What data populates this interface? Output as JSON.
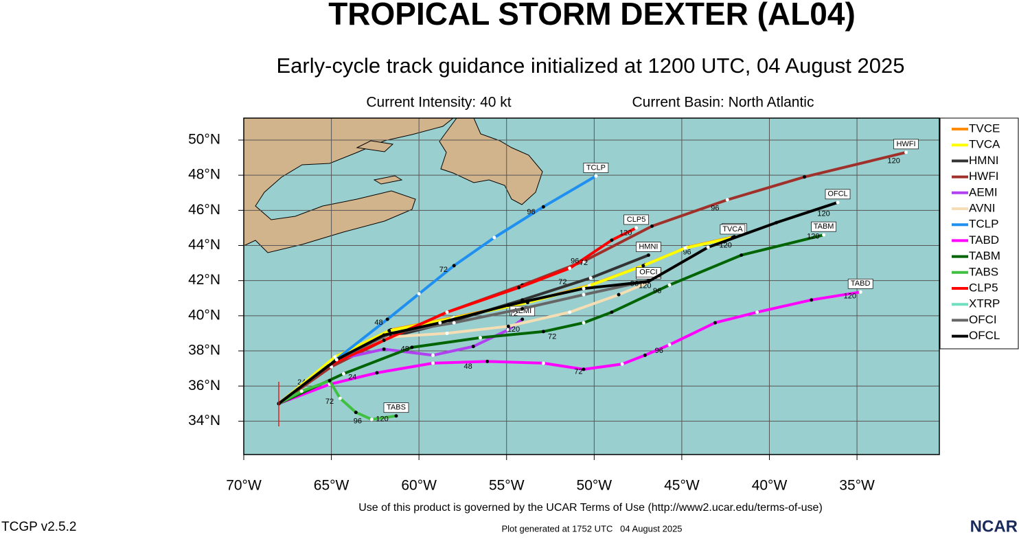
{
  "chart_data": {
    "type": "track",
    "title": "TROPICAL STORM DEXTER (AL04)",
    "subtitle": "Early-cycle track guidance initialized at 1200 UTC, 04 August 2025",
    "intensity_note": "Current Intensity: 40 kt",
    "basin_note": "Current Basin: North Atlantic",
    "xlim": [
      -70,
      -30.3
    ],
    "ylim": [
      32.1,
      51.25
    ],
    "xticks": [
      {
        "value": -70,
        "label": "70°W"
      },
      {
        "value": -65,
        "label": "65°W"
      },
      {
        "value": -60,
        "label": "60°W"
      },
      {
        "value": -55,
        "label": "55°W"
      },
      {
        "value": -50,
        "label": "50°W"
      },
      {
        "value": -45,
        "label": "45°W"
      },
      {
        "value": -40,
        "label": "40°W"
      },
      {
        "value": -35,
        "label": "35°W"
      }
    ],
    "yticks": [
      {
        "value": 34,
        "label": "34°N"
      },
      {
        "value": 36,
        "label": "36°N"
      },
      {
        "value": 38,
        "label": "38°N"
      },
      {
        "value": 40,
        "label": "40°N"
      },
      {
        "value": 42,
        "label": "42°N"
      },
      {
        "value": 44,
        "label": "44°N"
      },
      {
        "value": 46,
        "label": "46°N"
      },
      {
        "value": 48,
        "label": "48°N"
      },
      {
        "value": 50,
        "label": "50°N"
      }
    ],
    "grid": true,
    "legend": "right",
    "series": [
      {
        "name": "TVCE",
        "color": "#ff8c00",
        "x": [
          -68,
          -64.7,
          -61.6,
          -58.0,
          -53.7,
          -50.2,
          -47.1,
          -44.7,
          -42.0
        ],
        "y": [
          35,
          37.7,
          39.2,
          39.9,
          40.8,
          41.75,
          42.9,
          43.9,
          44.5
        ],
        "annotations": [
          {
            "text": "24",
            "x": -66.7,
            "y": 36.2
          },
          {
            "text": "96",
            "x": -44.7,
            "y": 43.6
          }
        ]
      },
      {
        "name": "TVCA",
        "color": "#ffff00",
        "x": [
          -68,
          -64.8,
          -61.7,
          -58.1,
          -53.8,
          -50.3,
          -47.2,
          -44.8,
          -42.1
        ],
        "y": [
          35,
          37.65,
          39.15,
          39.85,
          40.75,
          41.7,
          42.85,
          43.85,
          44.45
        ],
        "annotations": [
          {
            "text": "120",
            "x": -42.5,
            "y": 44.0
          }
        ]
      },
      {
        "name": "HMNI",
        "color": "#333333",
        "x": [
          -68,
          -64.7,
          -61.6,
          -58.4,
          -54.1,
          -50.2,
          -46.9
        ],
        "y": [
          35,
          37.5,
          38.8,
          39.6,
          40.9,
          42.15,
          43.45
        ],
        "annotations": [
          {
            "text": "72",
            "x": -51.8,
            "y": 41.9
          }
        ]
      },
      {
        "name": "HWFI",
        "color": "#a0302a",
        "x": [
          -68,
          -65,
          -62,
          -58.4,
          -54.1,
          -50.6,
          -46.7,
          -42.4,
          -38.0,
          -32.2
        ],
        "y": [
          35,
          37.1,
          38.6,
          40.2,
          41.75,
          43.1,
          45.1,
          46.6,
          47.9,
          49.3
        ],
        "annotations": [
          {
            "text": "96",
            "x": -43.1,
            "y": 46.1
          },
          {
            "text": "120",
            "x": -32.9,
            "y": 48.8
          }
        ]
      },
      {
        "name": "AEMI",
        "color": "#b040f0",
        "x": [
          -68,
          -64.7,
          -62,
          -59.2,
          -56.9,
          -54.9,
          -54.1
        ],
        "y": [
          35,
          37.5,
          38.1,
          37.75,
          38.25,
          39.2,
          39.8
        ],
        "annotations": [
          {
            "text": "72",
            "x": -54.6,
            "y": 40.1
          },
          {
            "text": "120",
            "x": -54.6,
            "y": 39.2
          }
        ]
      },
      {
        "name": "AVNI",
        "color": "#f5deb3",
        "x": [
          -68,
          -64.7,
          -61.6,
          -58.4,
          -54.9,
          -51.4,
          -48.6,
          -46.9
        ],
        "y": [
          35,
          37.5,
          38.8,
          39.0,
          39.4,
          40.2,
          41.2,
          41.9
        ],
        "annotations": []
      },
      {
        "name": "TCLP",
        "color": "#2090f0",
        "x": [
          -68,
          -65,
          -61.8,
          -60,
          -58.0,
          -55.7,
          -52.9,
          -49.9
        ],
        "y": [
          35,
          37.3,
          39.8,
          41.25,
          42.85,
          44.45,
          46.2,
          47.95
        ],
        "annotations": [
          {
            "text": "48",
            "x": -62.3,
            "y": 39.6
          },
          {
            "text": "72",
            "x": -58.6,
            "y": 42.6
          },
          {
            "text": "96",
            "x": -53.6,
            "y": 45.9
          }
        ]
      },
      {
        "name": "TABD",
        "color": "#ff00ff",
        "x": [
          -68,
          -65.1,
          -62.4,
          -59.2,
          -56.1,
          -52.9,
          -50.6,
          -48.4,
          -47.1,
          -45.7,
          -43.1,
          -40.7,
          -37.6,
          -34.8
        ],
        "y": [
          35,
          36.1,
          36.75,
          37.3,
          37.4,
          37.3,
          36.95,
          37.25,
          37.75,
          38.35,
          39.6,
          40.2,
          40.9,
          41.35
        ],
        "annotations": [
          {
            "text": "24",
            "x": -63.8,
            "y": 36.5
          },
          {
            "text": "48",
            "x": -57.2,
            "y": 37.1
          },
          {
            "text": "72",
            "x": -50.9,
            "y": 36.8
          },
          {
            "text": "96",
            "x": -46.3,
            "y": 38.0
          },
          {
            "text": "120",
            "x": -35.4,
            "y": 41.1
          }
        ]
      },
      {
        "name": "TABM",
        "color": "#006400",
        "x": [
          -68,
          -64.3,
          -60.4,
          -56.5,
          -52.9,
          -50.6,
          -49.0,
          -45.7,
          -41.6,
          -36.9
        ],
        "y": [
          35,
          36.7,
          38.2,
          38.75,
          39.1,
          39.6,
          40.2,
          41.75,
          43.45,
          44.6
        ],
        "annotations": [
          {
            "text": "48",
            "x": -60.8,
            "y": 38.1
          },
          {
            "text": "72",
            "x": -52.4,
            "y": 38.8
          },
          {
            "text": "96",
            "x": -46.4,
            "y": 41.4
          },
          {
            "text": "120",
            "x": -37.5,
            "y": 44.5
          }
        ]
      },
      {
        "name": "TABS",
        "color": "#40c040",
        "x": [
          -68,
          -66.7,
          -65.1,
          -64.5,
          -63.6,
          -62.7,
          -61.3
        ],
        "y": [
          35,
          35.7,
          36.3,
          35.3,
          34.5,
          34.1,
          34.3
        ],
        "annotations": [
          {
            "text": "72",
            "x": -65.1,
            "y": 35.1
          },
          {
            "text": "96",
            "x": -63.5,
            "y": 34.0
          },
          {
            "text": "120",
            "x": -62.1,
            "y": 34.1
          }
        ]
      },
      {
        "name": "CLP5",
        "color": "#ff0000",
        "x": [
          -68,
          -65.1,
          -62,
          -58.4,
          -54.3,
          -51.4,
          -49.0,
          -47.6
        ],
        "y": [
          35,
          37.2,
          38.6,
          40.2,
          41.6,
          42.7,
          44.3,
          45.0
        ],
        "annotations": [
          {
            "text": "72",
            "x": -50.6,
            "y": 43.0
          },
          {
            "text": "96",
            "x": -51.1,
            "y": 43.1
          },
          {
            "text": "120",
            "x": -48.2,
            "y": 44.7
          }
        ]
      },
      {
        "name": "XTRP",
        "color": "#70e0c0",
        "x": [],
        "y": [],
        "annotations": []
      },
      {
        "name": "OFCI",
        "color": "#666666",
        "x": [
          -68,
          -64.7,
          -61.6,
          -58.0,
          -54.1,
          -50.6,
          -46.9
        ],
        "y": [
          35,
          37.5,
          39.0,
          39.6,
          40.4,
          41.2,
          42.0
        ],
        "annotations": [
          {
            "text": "96",
            "x": -47.7,
            "y": 41.8
          },
          {
            "text": "120",
            "x": -47.1,
            "y": 41.7
          }
        ]
      },
      {
        "name": "OFCL",
        "color": "#000000",
        "x": [
          -68,
          -64.7,
          -62,
          -58.8,
          -54.9,
          -50.6,
          -46.9,
          -43.5,
          -39.6,
          -36.1
        ],
        "y": [
          35,
          37.5,
          38.9,
          39.6,
          40.6,
          41.55,
          41.95,
          43.9,
          45.3,
          46.45
        ],
        "annotations": [
          {
            "text": "120",
            "x": -36.9,
            "y": 45.8
          }
        ]
      }
    ],
    "terms_note": "Use of this product is governed by the UCAR Terms of Use (http://www2.ucar.edu/terms-of-use)",
    "version": "TCGP v2.5.2",
    "generated_note": "Plot generated at 1752 UTC   04 August 2025",
    "logo": "NCAR"
  }
}
